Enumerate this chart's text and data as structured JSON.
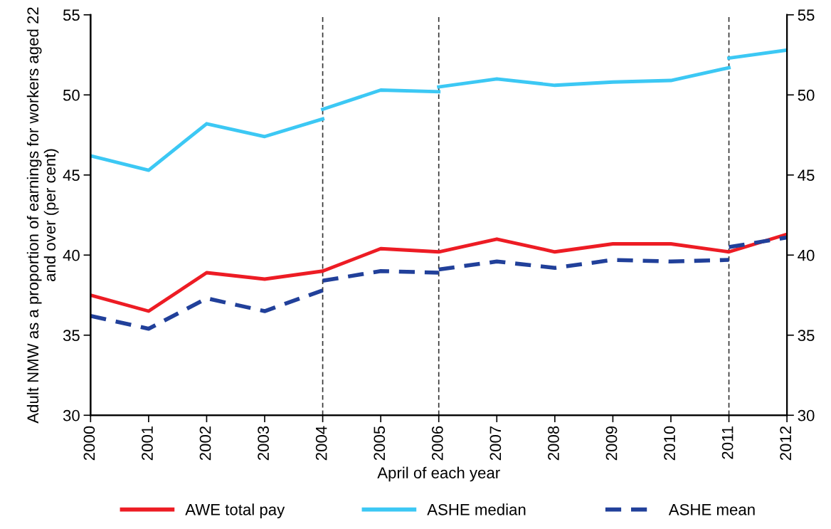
{
  "chart_data": {
    "type": "line",
    "xlabel": "April of each year",
    "ylabel": "Adult NMW as a proportion of earnings for workers aged 22 and over (per cent)",
    "xlim": [
      2000,
      2012
    ],
    "xticks": [
      2000,
      2001,
      2002,
      2003,
      2004,
      2005,
      2006,
      2007,
      2008,
      2009,
      2010,
      2011,
      2012
    ],
    "ylim": [
      30,
      55
    ],
    "yticks": [
      30,
      35,
      40,
      45,
      50,
      55
    ],
    "y2lim": [
      30,
      55
    ],
    "y2ticks": [
      30,
      35,
      40,
      45,
      50,
      55
    ],
    "grid": false,
    "legend": "bottom",
    "marker": "none",
    "ref_lines": [
      {
        "axis": "x",
        "value": 2004,
        "color": "#333333",
        "line_style": "dashed"
      },
      {
        "axis": "x",
        "value": 2006,
        "color": "#333333",
        "line_style": "dashed"
      },
      {
        "axis": "x",
        "value": 2011,
        "color": "#333333",
        "line_style": "dashed"
      }
    ],
    "series": [
      {
        "name": "AWE total pay",
        "color": "#ed1c24",
        "line_style": "solid",
        "x": [
          2000,
          2001,
          2002,
          2003,
          2004,
          2005,
          2006,
          2007,
          2008,
          2009,
          2010,
          2011,
          2012
        ],
        "values": [
          37.5,
          36.5,
          38.9,
          38.5,
          39.0,
          40.4,
          40.2,
          41.0,
          40.2,
          40.7,
          40.7,
          40.2,
          41.3
        ]
      },
      {
        "name": "ASHE median",
        "color": "#3cc8f4",
        "line_style": "solid",
        "x": [
          2000,
          2001,
          2002,
          2003,
          2004
        ],
        "values": [
          46.2,
          45.3,
          48.2,
          47.4,
          48.5
        ]
      },
      {
        "color": "#3cc8f4",
        "line_style": "solid",
        "x": [
          2004,
          2005,
          2006
        ],
        "values": [
          49.1,
          50.3,
          50.2
        ]
      },
      {
        "color": "#3cc8f4",
        "line_style": "solid",
        "x": [
          2006,
          2007,
          2008,
          2009,
          2010,
          2011
        ],
        "values": [
          50.5,
          51.0,
          50.6,
          50.8,
          50.9,
          51.7
        ]
      },
      {
        "color": "#3cc8f4",
        "line_style": "solid",
        "x": [
          2011,
          2012
        ],
        "values": [
          52.3,
          52.8
        ]
      },
      {
        "name": "ASHE mean",
        "color": "#21409a",
        "line_style": "dashed",
        "x": [
          2000,
          2001,
          2002,
          2003,
          2004
        ],
        "values": [
          36.2,
          35.4,
          37.3,
          36.5,
          37.8
        ]
      },
      {
        "color": "#21409a",
        "line_style": "dashed",
        "x": [
          2004,
          2005,
          2006
        ],
        "values": [
          38.4,
          39.0,
          38.9
        ]
      },
      {
        "color": "#21409a",
        "line_style": "dashed",
        "x": [
          2006,
          2007,
          2008,
          2009,
          2010,
          2011
        ],
        "values": [
          39.1,
          39.6,
          39.2,
          39.7,
          39.6,
          39.7
        ]
      },
      {
        "color": "#21409a",
        "line_style": "dashed",
        "x": [
          2011,
          2012
        ],
        "values": [
          40.5,
          41.1
        ]
      }
    ]
  }
}
